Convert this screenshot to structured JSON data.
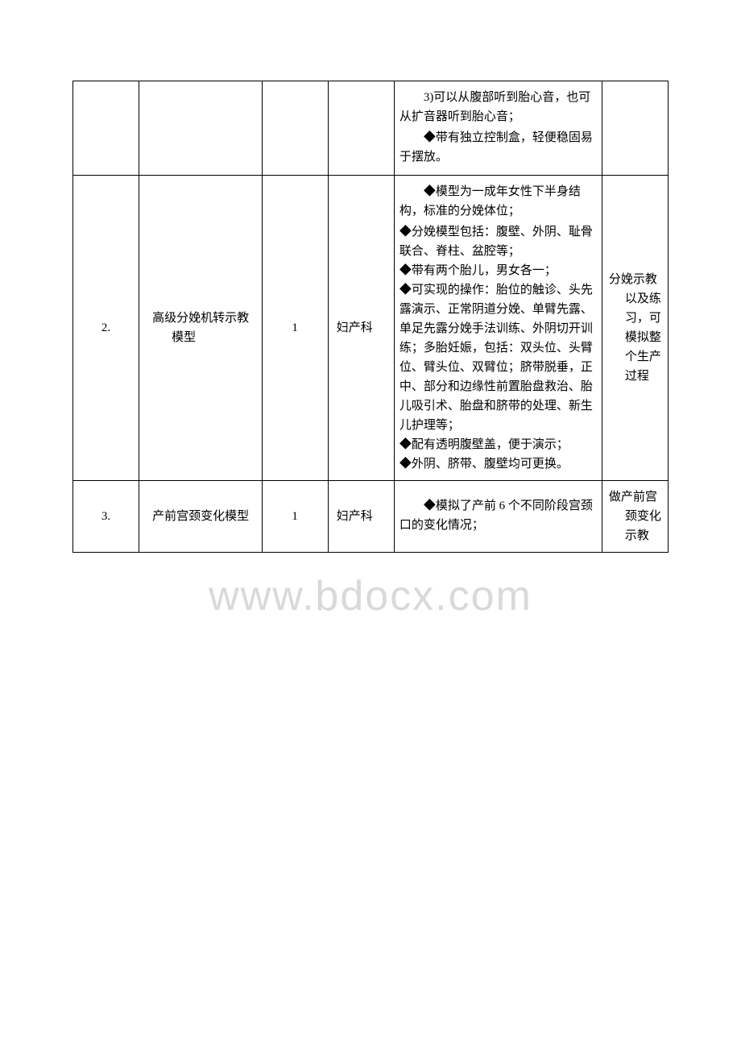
{
  "watermark": "www.bdocx.com",
  "rows": [
    {
      "num": "",
      "name": "",
      "qty": "",
      "dept": "",
      "desc_indent": "3)可以从腹部听到胎心音，也可从扩音器听到胎心音；",
      "desc_blank": " ",
      "desc_indent2": "◆带有独立控制盒，轻便稳固易于摆放。",
      "purpose": ""
    },
    {
      "num": "2.",
      "name": "高级分娩机转示教模型",
      "qty": "1",
      "dept": "妇产科",
      "desc_indent": "◆模型为一成年女性下半身结构，标准的分娩体位；",
      "desc_lines": "◆分娩模型包括：腹壁、外阴、耻骨联合、脊柱、盆腔等；\n◆带有两个胎儿，男女各一；\n◆可实现的操作：胎位的触诊、头先露演示、正常阴道分娩、单臂先露、单足先露分娩手法训练、外阴切开训练；多胎妊娠，包括：双头位、头臂位、臂头位、双臂位；脐带脱垂，正中、部分和边缘性前置胎盘救治、胎儿吸引术、胎盘和脐带的处理、新生儿护理等；\n◆配有透明腹壁盖，便于演示；\n◆外阴、脐带、腹壁均可更换。",
      "purpose": "分娩示教以及练习，可模拟整个生产过程"
    },
    {
      "num": "3.",
      "name": "产前宫颈变化模型",
      "qty": "1",
      "dept": "妇产科",
      "desc_indent": "◆模拟了产前 6 个不同阶段宫颈口的变化情况；",
      "purpose": "做产前宫颈变化示教"
    }
  ]
}
